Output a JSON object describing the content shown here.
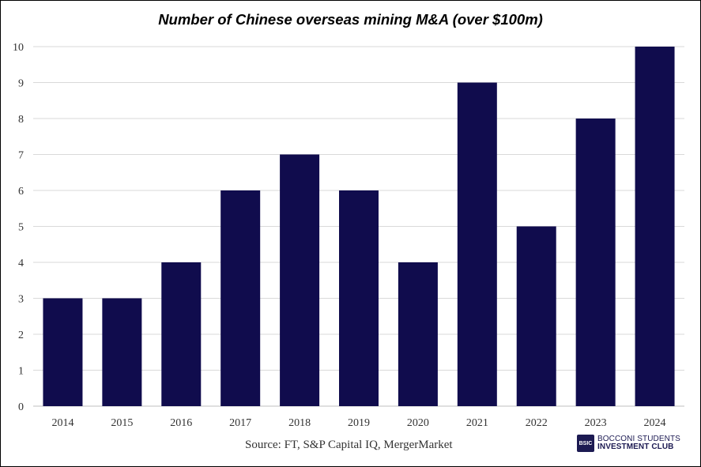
{
  "chart_data": {
    "type": "bar",
    "title": "Number of Chinese overseas mining M&A (over $100m)",
    "categories": [
      "2014",
      "2015",
      "2016",
      "2017",
      "2018",
      "2019",
      "2020",
      "2021",
      "2022",
      "2023",
      "2024"
    ],
    "values": [
      3,
      3,
      4,
      6,
      7,
      6,
      4,
      9,
      5,
      8,
      10
    ],
    "ylim": [
      0,
      10
    ],
    "yticks": [
      0,
      1,
      2,
      3,
      4,
      5,
      6,
      7,
      8,
      9,
      10
    ],
    "xlabel": "",
    "ylabel": "",
    "grid": true,
    "bar_color": "#100c4d",
    "grid_color": "#d9d9d9"
  },
  "footer": {
    "source": "Source:  FT, S&P Capital IQ, MergerMarket",
    "brand_logo": "BSIC",
    "brand_line1": "BOCCONI STUDENTS",
    "brand_line2": "INVESTMENT CLUB"
  }
}
